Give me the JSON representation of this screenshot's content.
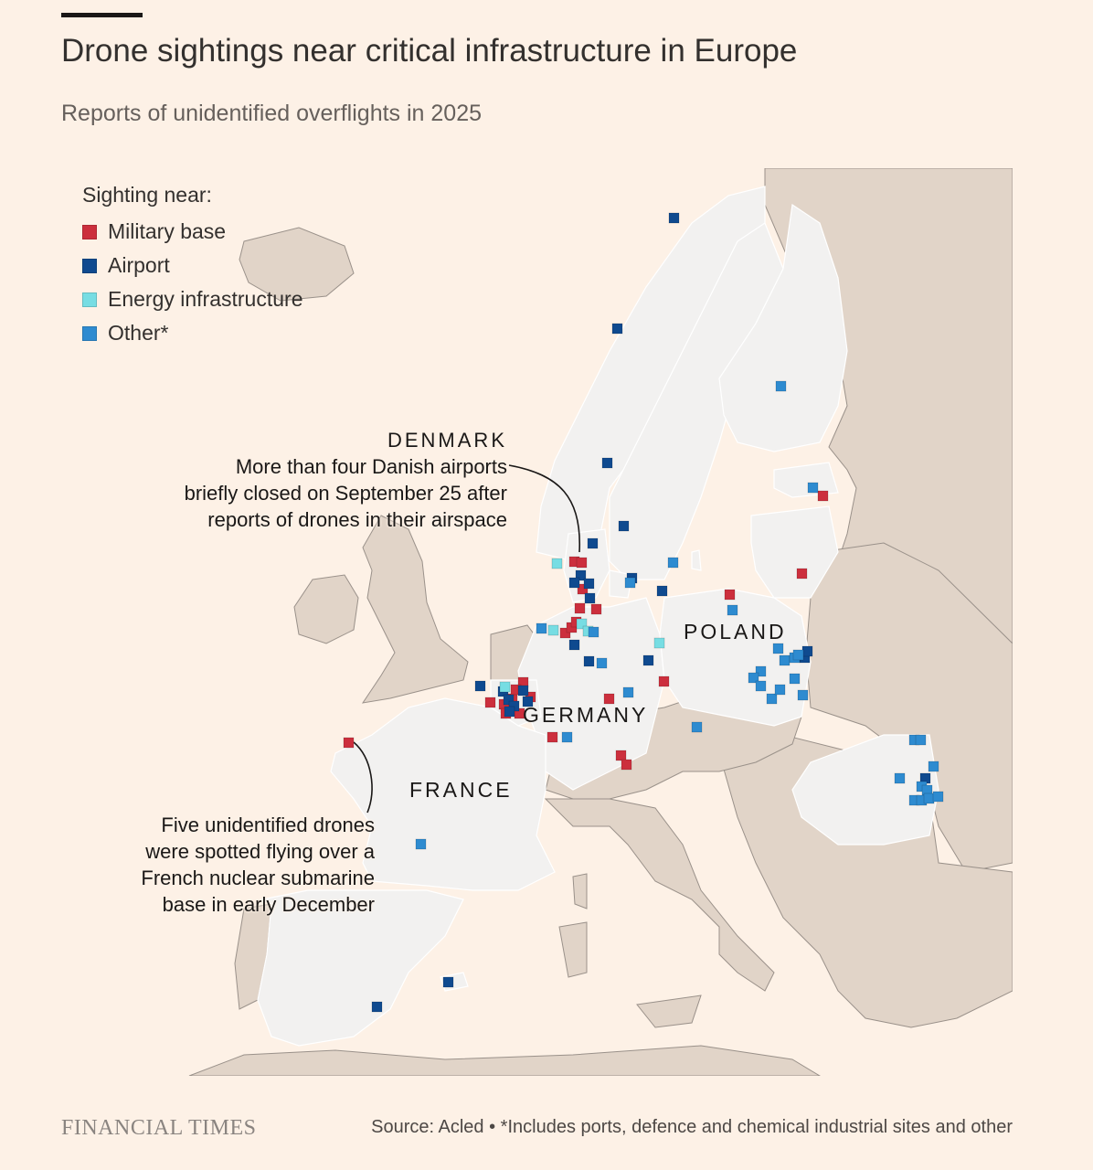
{
  "header": {
    "title": "Drone sightings near critical infrastructure in Europe",
    "subtitle": "Reports of unidentified overflights in 2025"
  },
  "legend": {
    "title": "Sighting near:",
    "items": [
      {
        "label": "Military base",
        "color": "#cc2f3d"
      },
      {
        "label": "Airport",
        "color": "#0f4a8f"
      },
      {
        "label": "Energy infrastructure",
        "color": "#77dde3"
      },
      {
        "label": "Other*",
        "color": "#2e8bd0"
      }
    ]
  },
  "countries": {
    "denmark": "DENMARK",
    "poland": "POLAND",
    "germany": "GERMANY",
    "france": "FRANCE"
  },
  "annotations": {
    "denmark": {
      "title": "DENMARK",
      "lines": [
        "More than four Danish airports",
        "briefly closed on September 25 after",
        "reports of drones in their airspace"
      ]
    },
    "france": {
      "lines": [
        "Five unidentified drones",
        "were spotted flying over a",
        "French nuclear submarine",
        "base in early December"
      ]
    }
  },
  "colors": {
    "background": "#fdf1e6",
    "affected_country": "#f2f1f0",
    "other_land": "#e1d4c8",
    "border": "#ffffff",
    "coast": "#9a918a"
  },
  "footer": {
    "brand": "FINANCIAL TIMES",
    "source": "Source: Acled • *Includes ports, defence and chemical industrial sites and other"
  }
}
